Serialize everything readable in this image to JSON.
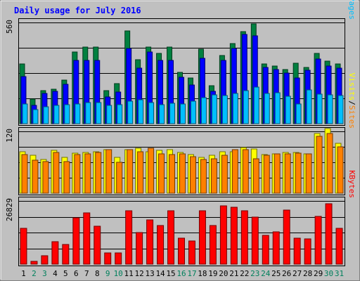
{
  "chart_data": {
    "type": "bar",
    "title": "Daily usage for July 2016",
    "categories": [
      "1",
      "2",
      "3",
      "4",
      "5",
      "6",
      "7",
      "8",
      "9",
      "10",
      "11",
      "12",
      "13",
      "14",
      "15",
      "16",
      "17",
      "18",
      "19",
      "20",
      "21",
      "22",
      "23",
      "24",
      "25",
      "26",
      "27",
      "28",
      "29",
      "30",
      "31"
    ],
    "weekend_days": [
      "2",
      "3",
      "9",
      "10",
      "16",
      "17",
      "23",
      "24",
      "30",
      "31"
    ],
    "panels": [
      {
        "id": "requests",
        "ymax_label": "560",
        "ymax": 560,
        "axis_label_parts": [
          "Pages",
          "/",
          "Files",
          "/",
          "Hits"
        ],
        "series": [
          {
            "name": "Hits",
            "color": "#008040",
            "values": [
              330,
              136,
              181,
              191,
              240,
              398,
              423,
              423,
              184,
              220,
              515,
              352,
              425,
              389,
              425,
              282,
              253,
              413,
              209,
              377,
              442,
              510,
              554,
              331,
              320,
              301,
              334,
              311,
              388,
              348,
              330
            ]
          },
          {
            "name": "Files",
            "color": "#0000ff",
            "values": [
              261,
              100,
              169,
              178,
              219,
              351,
              351,
              351,
              149,
              175,
              417,
              308,
              395,
              351,
              351,
              256,
              215,
              360,
              178,
              351,
              417,
              495,
              485,
              313,
              301,
              280,
              251,
              296,
              359,
              317,
              307
            ]
          },
          {
            "name": "Pages",
            "color": "#00bfff",
            "values": [
              107,
              76,
              93,
              100,
              105,
              107,
              118,
              118,
              102,
              104,
              124,
              133,
              116,
              104,
              114,
              107,
              126,
              143,
              160,
              156,
              168,
              184,
              202,
              167,
              170,
              151,
              108,
              188,
              163,
              160,
              156
            ]
          }
        ]
      },
      {
        "id": "visits",
        "ymax_label": "120",
        "ymax": 120,
        "axis_label_parts": [
          "Sites",
          "/",
          "Visits"
        ],
        "series": [
          {
            "name": "Visits",
            "color": "#ffff00",
            "values": [
              81,
              74,
              65,
              83,
              69,
              78,
              79,
              80,
              85,
              70,
              85,
              87,
              81,
              83,
              85,
              79,
              75,
              70,
              73,
              80,
              80,
              88,
              86,
              75,
              77,
              79,
              79,
              76,
              116,
              125,
              97
            ]
          },
          {
            "name": "Sites",
            "color": "#ff8000",
            "values": [
              75,
              64,
              62,
              79,
              61,
              75,
              76,
              79,
              84,
              60,
              85,
              80,
              87,
              77,
              75,
              76,
              71,
              66,
              67,
              73,
              84,
              85,
              67,
              74,
              76,
              76,
              78,
              76,
              110,
              116,
              90
            ]
          }
        ]
      },
      {
        "id": "kbytes",
        "ymax_label": "26829",
        "ymax": 26829,
        "axis_label_parts": [
          "KBytes"
        ],
        "series": [
          {
            "name": "KBytes",
            "color": "#ff0000",
            "values": [
              15180,
              1280,
              3650,
              9560,
              8260,
              19780,
              21890,
              16180,
              4730,
              4880,
              22680,
              13460,
              18670,
              16380,
              22750,
              10910,
              9760,
              22520,
              16480,
              24680,
              24080,
              22680,
              19950,
              12330,
              13590,
              22910,
              11040,
              10780,
              20140,
              25700,
              15190
            ]
          }
        ]
      }
    ]
  },
  "colors": {
    "title": "#0000ff",
    "weekday_label": "#000000",
    "weekend_label": "#00805c",
    "plot_bg": "#c0c0c0",
    "separator": "#000000",
    "axis_label_sep": "#000000"
  }
}
